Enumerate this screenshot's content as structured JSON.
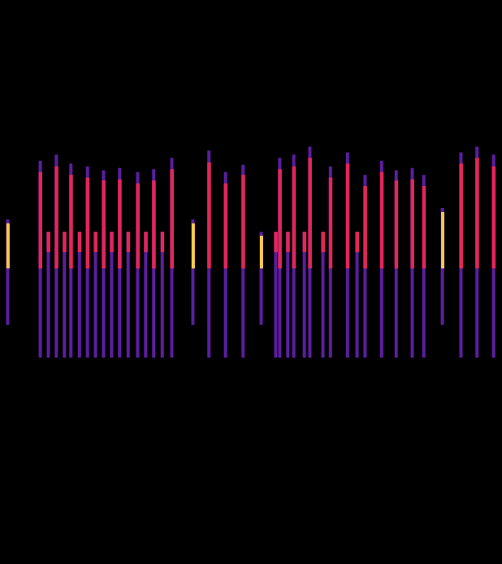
{
  "chart_data": {
    "type": "spectrogram",
    "xlim": [
      0,
      100
    ],
    "ylim": [
      0,
      100
    ],
    "tick_labels": false,
    "series": [
      {
        "color": "#5b1e9e",
        "x": [
          1.6,
          8.1,
          9.7,
          11.3,
          12.9,
          14.2,
          15.9,
          17.5,
          19.1,
          20.7,
          22.3,
          23.9,
          25.6,
          27.5,
          29.1,
          30.7,
          32.4,
          34.3,
          38.5,
          41.7,
          45.0,
          48.5,
          52.1,
          55.0,
          55.8,
          57.4,
          58.6,
          60.7,
          61.8,
          64.4,
          65.9,
          69.3,
          71.2,
          72.8,
          76.1,
          79.0,
          82.2,
          84.5,
          88.2,
          91.9,
          95.1,
          98.4
        ],
        "values": [
          [
            42.4,
            61.1
          ],
          [
            36.6,
            71.5
          ],
          [
            36.6,
            58.9
          ],
          [
            36.6,
            72.6
          ],
          [
            36.6,
            58.9
          ],
          [
            36.6,
            71.0
          ],
          [
            36.6,
            58.9
          ],
          [
            36.6,
            70.5
          ],
          [
            36.6,
            58.9
          ],
          [
            36.6,
            69.8
          ],
          [
            36.6,
            58.9
          ],
          [
            36.6,
            70.2
          ],
          [
            36.6,
            58.9
          ],
          [
            36.6,
            69.5
          ],
          [
            36.6,
            58.9
          ],
          [
            36.6,
            70.0
          ],
          [
            36.6,
            58.9
          ],
          [
            36.6,
            72.0
          ],
          [
            42.4,
            61.1
          ],
          [
            36.6,
            73.3
          ],
          [
            36.6,
            69.5
          ],
          [
            36.6,
            70.8
          ],
          [
            42.4,
            58.9
          ],
          [
            36.6,
            58.9
          ],
          [
            36.6,
            72.0
          ],
          [
            36.6,
            58.9
          ],
          [
            36.6,
            72.6
          ],
          [
            36.6,
            58.9
          ],
          [
            36.6,
            74.0
          ],
          [
            36.6,
            58.9
          ],
          [
            36.6,
            70.5
          ],
          [
            36.6,
            73.0
          ],
          [
            36.6,
            58.9
          ],
          [
            36.6,
            69.0
          ],
          [
            36.6,
            71.5
          ],
          [
            36.6,
            69.8
          ],
          [
            36.6,
            70.2
          ],
          [
            36.6,
            69.0
          ],
          [
            42.4,
            63.1
          ],
          [
            36.6,
            73.0
          ],
          [
            36.6,
            74.0
          ],
          [
            36.6,
            72.6
          ]
        ]
      },
      {
        "color": "#e3265a",
        "x": [
          8.1,
          9.7,
          11.3,
          12.9,
          14.2,
          15.9,
          17.5,
          19.1,
          20.7,
          22.3,
          23.9,
          25.6,
          27.5,
          29.1,
          30.7,
          32.4,
          34.3,
          41.7,
          45.0,
          48.5,
          55.0,
          55.8,
          57.4,
          58.6,
          60.7,
          61.8,
          64.4,
          65.9,
          69.3,
          71.2,
          72.8,
          76.1,
          79.0,
          82.2,
          84.5,
          91.9,
          95.1,
          98.4
        ],
        "values": [
          [
            52.4,
            69.5
          ],
          [
            55.3,
            58.9
          ],
          [
            52.4,
            70.5
          ],
          [
            55.3,
            58.9
          ],
          [
            52.4,
            69.0
          ],
          [
            55.3,
            58.9
          ],
          [
            52.4,
            68.5
          ],
          [
            55.3,
            58.9
          ],
          [
            52.4,
            68.0
          ],
          [
            55.3,
            58.9
          ],
          [
            52.4,
            68.2
          ],
          [
            55.3,
            58.9
          ],
          [
            52.4,
            67.5
          ],
          [
            55.3,
            58.9
          ],
          [
            52.4,
            68.0
          ],
          [
            55.3,
            58.9
          ],
          [
            52.4,
            70.0
          ],
          [
            52.4,
            71.2
          ],
          [
            52.4,
            67.5
          ],
          [
            52.4,
            69.0
          ],
          [
            55.3,
            58.9
          ],
          [
            52.4,
            70.0
          ],
          [
            55.3,
            58.9
          ],
          [
            52.4,
            70.5
          ],
          [
            55.3,
            58.9
          ],
          [
            52.4,
            72.0
          ],
          [
            55.3,
            58.9
          ],
          [
            52.4,
            68.5
          ],
          [
            52.4,
            71.0
          ],
          [
            55.3,
            58.9
          ],
          [
            52.4,
            67.0
          ],
          [
            52.4,
            69.5
          ],
          [
            52.4,
            68.0
          ],
          [
            52.4,
            68.2
          ],
          [
            52.4,
            67.0
          ],
          [
            52.4,
            71.0
          ],
          [
            52.4,
            72.0
          ],
          [
            52.4,
            70.5
          ]
        ]
      },
      {
        "color": "#f9c74f",
        "x": [
          1.6,
          38.5,
          52.1,
          88.2
        ],
        "values": [
          [
            52.4,
            60.4
          ],
          [
            52.4,
            60.4
          ],
          [
            52.4,
            58.2
          ],
          [
            52.4,
            62.4
          ]
        ]
      }
    ]
  }
}
